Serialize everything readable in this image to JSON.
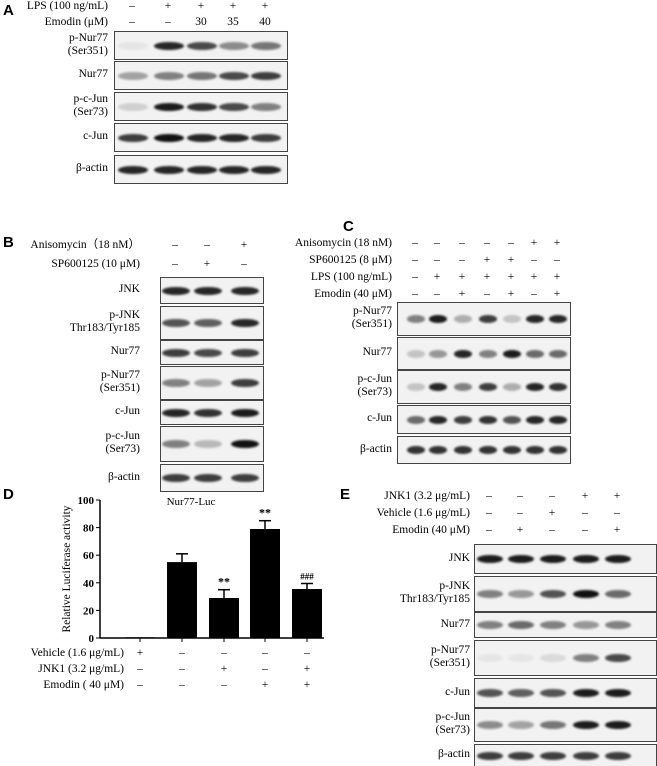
{
  "panels": {
    "A": {
      "label": "A",
      "conditions": [
        {
          "label": "LPS (100 ng/mL)",
          "values": [
            "–",
            "+",
            "+",
            "+",
            "+"
          ]
        },
        {
          "label": "Emodin (μM)",
          "values": [
            "–",
            "–",
            "30",
            "35",
            "40"
          ]
        }
      ],
      "blots": [
        {
          "label": [
            "p-Nur77",
            "(Ser351)"
          ],
          "intensity": [
            0.05,
            0.9,
            0.75,
            0.45,
            0.55
          ]
        },
        {
          "label": [
            "Nur77"
          ],
          "intensity": [
            0.35,
            0.5,
            0.55,
            0.75,
            0.8
          ]
        },
        {
          "label": [
            "p-c-Jun",
            "(Ser73)"
          ],
          "intensity": [
            0.15,
            0.95,
            0.85,
            0.75,
            0.5
          ]
        },
        {
          "label": [
            "c-Jun"
          ],
          "intensity": [
            0.8,
            1,
            0.9,
            0.9,
            0.8
          ]
        },
        {
          "label": [
            "β-actin"
          ],
          "intensity": [
            0.9,
            0.9,
            0.9,
            0.9,
            0.9
          ]
        }
      ]
    },
    "B": {
      "label": "B",
      "conditions": [
        {
          "label": "Anisomycin（18 nM）",
          "values": [
            "–",
            "–",
            "+"
          ]
        },
        {
          "label": "SP600125 (10 μM)",
          "values": [
            "–",
            "+",
            "–"
          ]
        }
      ],
      "blots": [
        {
          "label": [
            "JNK"
          ],
          "intensity": [
            0.9,
            0.9,
            0.9
          ]
        },
        {
          "label": [
            "p-JNK",
            "Thr183/Tyr185"
          ],
          "intensity": [
            0.7,
            0.65,
            0.9
          ]
        },
        {
          "label": [
            "Nur77"
          ],
          "intensity": [
            0.8,
            0.75,
            0.8
          ]
        },
        {
          "label": [
            "p-Nur77",
            "(Ser351)"
          ],
          "intensity": [
            0.5,
            0.35,
            0.8
          ]
        },
        {
          "label": [
            "c-Jun"
          ],
          "intensity": [
            0.9,
            0.85,
            0.95
          ]
        },
        {
          "label": [
            "p-c-Jun",
            "(Ser73)"
          ],
          "intensity": [
            0.5,
            0.25,
            1
          ]
        },
        {
          "label": [
            "β-actin"
          ],
          "intensity": [
            0.8,
            0.8,
            0.8
          ]
        }
      ]
    },
    "C": {
      "label": "C",
      "conditions": [
        {
          "label": "Anisomycin (18 nM)",
          "values": [
            "–",
            "–",
            "–",
            "–",
            "–",
            "+",
            "+"
          ]
        },
        {
          "label": "SP600125 (8 μM)",
          "values": [
            "–",
            "–",
            "–",
            "+",
            "+",
            "–",
            "–"
          ]
        },
        {
          "label": "LPS (100 ng/mL)",
          "values": [
            "–",
            "+",
            "+",
            "+",
            "+",
            "+",
            "+"
          ]
        },
        {
          "label": "Emodin (40 μM)",
          "values": [
            "–",
            "–",
            "+",
            "–",
            "+",
            "–",
            "+"
          ]
        }
      ],
      "blots": [
        {
          "label": [
            "p-Nur77",
            "(Ser351)"
          ],
          "intensity": [
            0.5,
            0.95,
            0.3,
            0.8,
            0.2,
            0.9,
            0.9
          ]
        },
        {
          "label": [
            "Nur77"
          ],
          "intensity": [
            0.2,
            0.4,
            0.9,
            0.5,
            0.95,
            0.6,
            0.6
          ]
        },
        {
          "label": [
            "p-c-Jun",
            "(Ser73)"
          ],
          "intensity": [
            0.2,
            0.9,
            0.5,
            0.8,
            0.3,
            0.9,
            0.85
          ]
        },
        {
          "label": [
            "c-Jun"
          ],
          "intensity": [
            0.6,
            0.9,
            0.8,
            0.85,
            0.7,
            0.9,
            0.9
          ]
        },
        {
          "label": [
            "β-actin"
          ],
          "intensity": [
            0.85,
            0.85,
            0.85,
            0.85,
            0.85,
            0.85,
            0.85
          ]
        }
      ]
    },
    "E": {
      "label": "E",
      "conditions": [
        {
          "label": "JNK1 (3.2 μg/mL)",
          "values": [
            "–",
            "–",
            "–",
            "+",
            "+"
          ]
        },
        {
          "label": "Vehicle (1.6 μg/mL)",
          "values": [
            "–",
            "–",
            "+",
            "–",
            "–"
          ]
        },
        {
          "label": "Emodin (40 μM)",
          "values": [
            "–",
            "+",
            "–",
            "–",
            "+"
          ]
        }
      ],
      "blots": [
        {
          "label": [
            "JNK"
          ],
          "intensity": [
            0.95,
            0.95,
            0.95,
            0.95,
            0.95
          ]
        },
        {
          "label": [
            "p-JNK",
            "Thr183/Tyr185"
          ],
          "intensity": [
            0.5,
            0.4,
            0.7,
            1,
            0.6
          ]
        },
        {
          "label": [
            "Nur77"
          ],
          "intensity": [
            0.5,
            0.6,
            0.5,
            0.4,
            0.5
          ]
        },
        {
          "label": [
            "p-Nur77",
            "(Ser351)"
          ],
          "intensity": [
            0.05,
            0.05,
            0.1,
            0.5,
            0.75
          ]
        },
        {
          "label": [
            "c-Jun"
          ],
          "intensity": [
            0.7,
            0.65,
            0.7,
            0.95,
            0.95
          ]
        },
        {
          "label": [
            "p-c-Jun",
            "(Ser73)"
          ],
          "intensity": [
            0.45,
            0.35,
            0.55,
            0.95,
            0.95
          ]
        },
        {
          "label": [
            "β-actin"
          ],
          "intensity": [
            0.8,
            0.8,
            0.8,
            0.8,
            0.8
          ]
        }
      ]
    }
  },
  "chart_data": {
    "panel_label": "D",
    "type": "bar",
    "title": "Nur77-Luc",
    "ylabel": "Relative Luciferase activity",
    "xlabel": "",
    "ylim": [
      0,
      100
    ],
    "yticks": [
      0,
      20,
      40,
      60,
      80,
      100
    ],
    "grid": false,
    "values": [
      0.5,
      55,
      29,
      79,
      35.5
    ],
    "errors": [
      0,
      6,
      6,
      6,
      4
    ],
    "annotations": [
      "",
      "",
      "**",
      "**",
      "###"
    ],
    "bar_color": "#000000",
    "conditions": [
      {
        "label": "Vehicle (1.6 μg/mL)",
        "values": [
          "+",
          "–",
          "–",
          "–",
          "–"
        ]
      },
      {
        "label": "JNK1 (3.2 μg/mL)",
        "values": [
          "–",
          "–",
          "+",
          "–",
          "+"
        ]
      },
      {
        "label": "Emodin ( 40 μM)",
        "values": [
          "–",
          "–",
          "–",
          "+",
          "+"
        ]
      }
    ]
  }
}
